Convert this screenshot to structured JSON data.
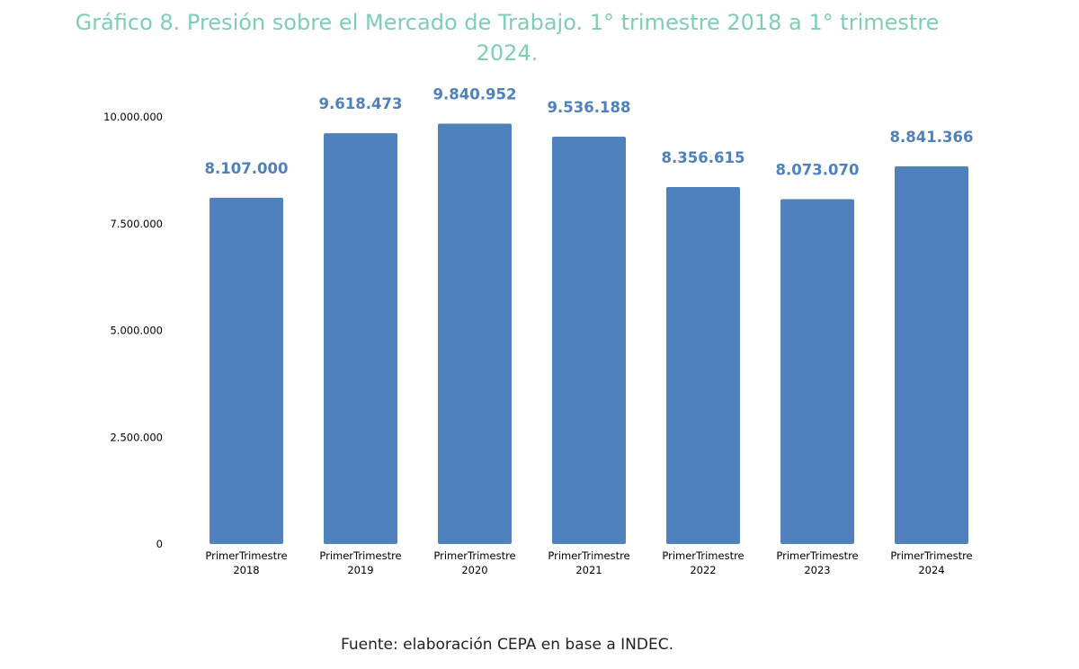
{
  "chart_data": {
    "type": "bar",
    "title": "Gráfico 8. Presión sobre el Mercado de Trabajo. 1° trimestre 2018 a 1° trimestre 2024.",
    "categories": [
      [
        "PrimerTrimestre",
        "2018"
      ],
      [
        "PrimerTrimestre",
        "2019"
      ],
      [
        "PrimerTrimestre",
        "2020"
      ],
      [
        "PrimerTrimestre",
        "2021"
      ],
      [
        "PrimerTrimestre",
        "2022"
      ],
      [
        "PrimerTrimestre",
        "2023"
      ],
      [
        "PrimerTrimestre",
        "2024"
      ]
    ],
    "values": [
      8107000,
      9618473,
      9840952,
      9536188,
      8356615,
      8073070,
      8841366
    ],
    "data_labels": [
      "8.107.000",
      "9.618.473",
      "9.840.952",
      "9.536.188",
      "8.356.615",
      "8.073.070",
      "8.841.366"
    ],
    "y_ticks": [
      0,
      2500000,
      5000000,
      7500000,
      10000000
    ],
    "y_tick_labels": [
      "0",
      "2.500.000",
      "5.000.000",
      "7.500.000",
      "10.000.000"
    ],
    "ylim": [
      0,
      10000000
    ],
    "xlabel": "",
    "ylabel": "",
    "grid": false,
    "legend": "none",
    "bar_color": "#4f81bd",
    "label_color": "#4f81bd",
    "title_color": "#7fcdb6"
  },
  "source": "Fuente: elaboración CEPA en base a INDEC."
}
